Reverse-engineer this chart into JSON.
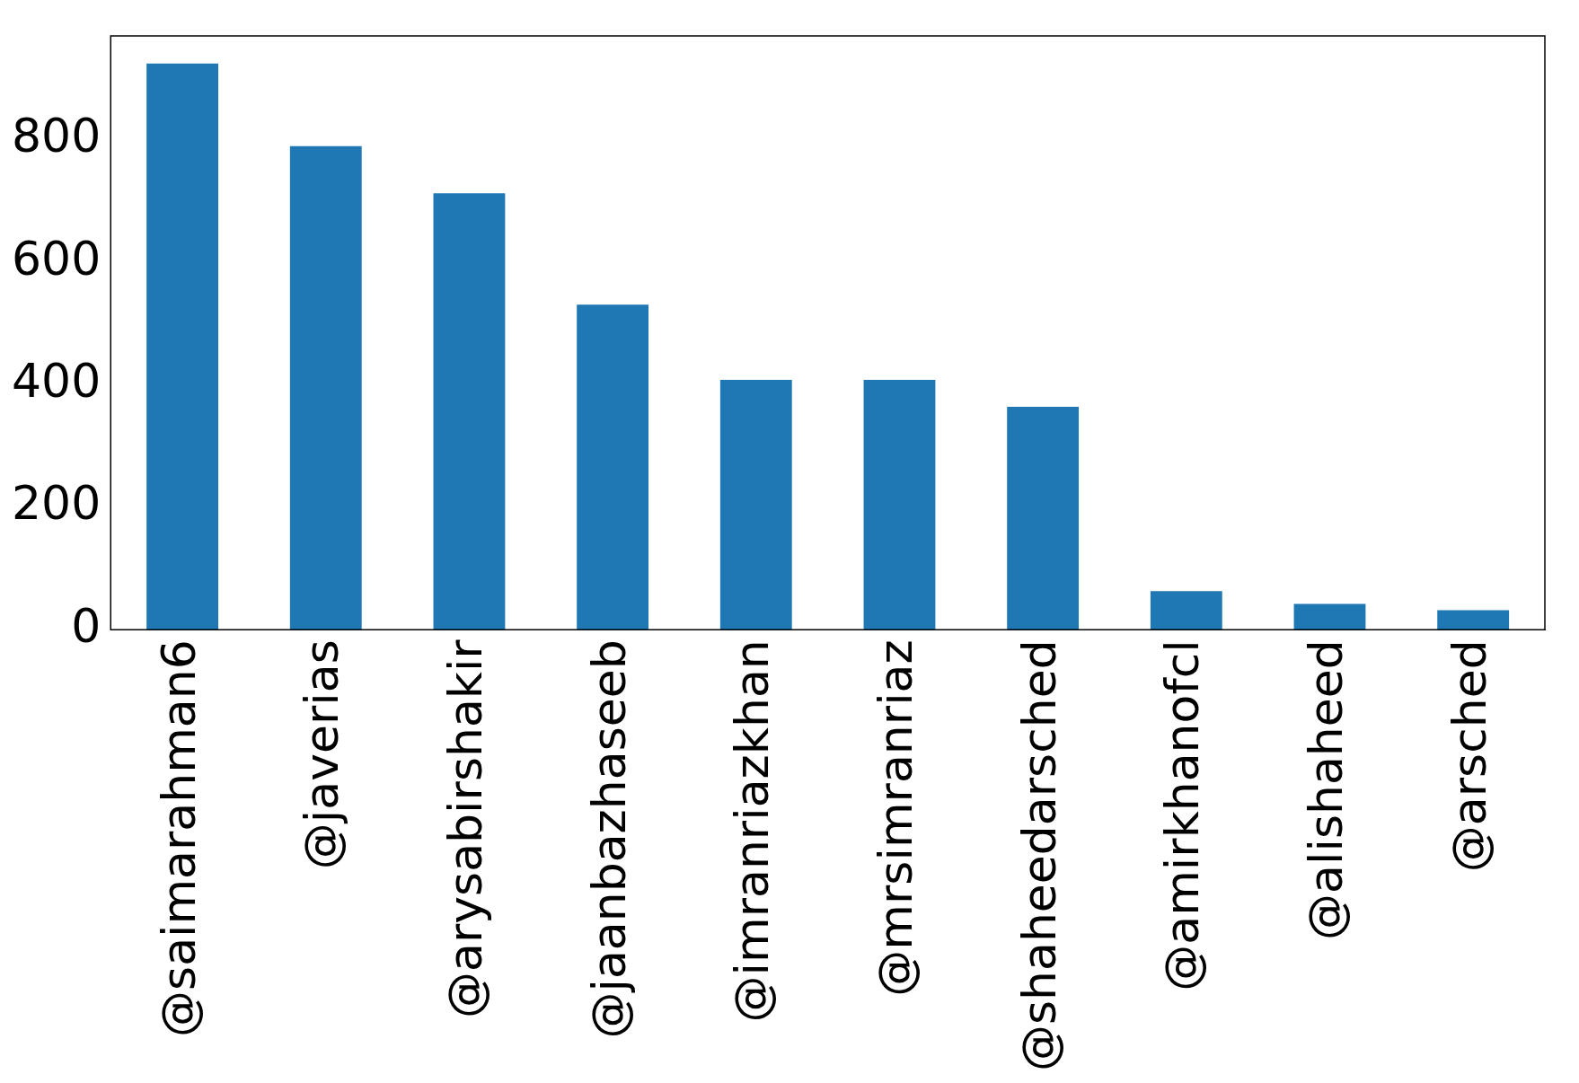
{
  "chart_data": {
    "type": "bar",
    "categories": [
      "@saimarahman6",
      "@javerias",
      "@arysabirshakir",
      "@jaanbazhaseeb",
      "@imranriazkhan",
      "@mrsimranriaz",
      "@shaheedarsched",
      "@amirkhanofcl",
      "@alishaheed",
      "@arsched"
    ],
    "values": [
      925,
      790,
      713,
      531,
      408,
      408,
      364,
      63,
      42,
      32
    ],
    "color": "#1f77b4",
    "ylim": [
      0,
      970
    ],
    "yticks": [
      0,
      200,
      400,
      600,
      800
    ],
    "grid": false,
    "legend": false
  }
}
